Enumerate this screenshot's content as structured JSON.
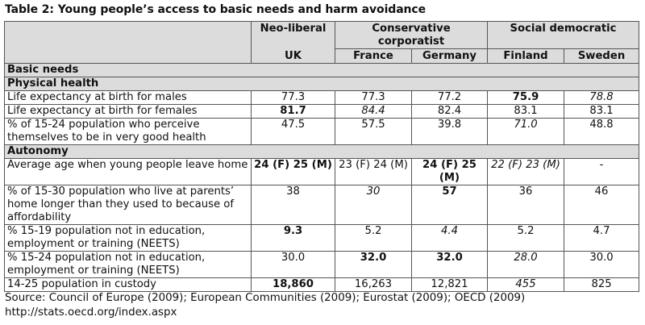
{
  "title": "Table 2: Young people’s access to basic needs and harm avoidance",
  "groups": {
    "g1": "Neo-liberal",
    "g2": "Conservative corporatist",
    "g3": "Social democratic"
  },
  "countries": [
    "UK",
    "France",
    "Germany",
    "Finland",
    "Sweden"
  ],
  "sections": {
    "basic": "Basic needs",
    "physical": "Physical health",
    "autonomy": "Autonomy"
  },
  "rows": [
    {
      "label": "Life expectancy at birth for males",
      "values": [
        "77.3",
        "77.3",
        "77.2",
        "75.9",
        "78.8"
      ]
    },
    {
      "label": "Life expectancy at birth for females",
      "values": [
        "81.7",
        "84.4",
        "82.4",
        "83.1",
        "83.1"
      ]
    },
    {
      "label": "% of 15-24 population who perceive themselves to be in very good health",
      "values": [
        "47.5",
        "57.5",
        "39.8",
        "71.0",
        "48.8"
      ]
    },
    {
      "label": "Average age when young people leave home",
      "values": [
        "24 (F) 25 (M)",
        "23 (F) 24 (M)",
        "24 (F) 25 (M)",
        "22 (F) 23 (M)",
        "-"
      ]
    },
    {
      "label": "% of 15-30 population who live at parents’ home longer than they used to because of affordability",
      "values": [
        "38",
        "30",
        "57",
        "36",
        "46"
      ]
    },
    {
      "label": "% 15-19 population not in education, employment or training (NEETS)",
      "values": [
        "9.3",
        "5.2",
        "4.4",
        "5.2",
        "4.7"
      ]
    },
    {
      "label": "% 15-24 population not in education, employment or training (NEETS)",
      "values": [
        "30.0",
        "32.0",
        "32.0",
        "28.0",
        "30.0"
      ]
    },
    {
      "label": "14-25 population in custody",
      "values": [
        "18,860",
        "16,263",
        "12,821",
        "455",
        "825"
      ]
    }
  ],
  "source": "Source: Council of Europe (2009); European Communities (2009); Eurostat (2009); OECD (2009) http://stats.oecd.org/index.aspx"
}
